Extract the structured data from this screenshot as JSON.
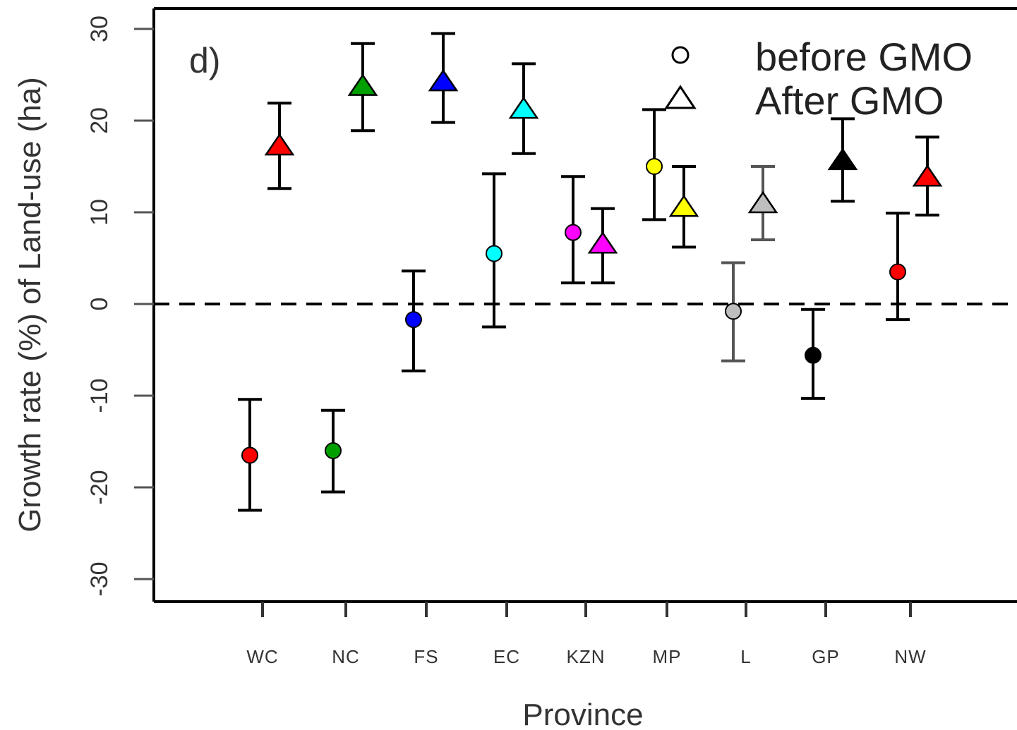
{
  "chart_data": {
    "type": "scatter",
    "panel_label": "d)",
    "xlabel": "Province",
    "ylabel": "Growth rate (%) of Land-use (ha)",
    "ylim": [
      -32,
      32
    ],
    "yticks": [
      "-30",
      "-20",
      "-10",
      "0",
      "10",
      "20",
      "30"
    ],
    "ytick_values": [
      -30,
      -20,
      -10,
      0,
      10,
      20,
      30
    ],
    "reference_line": 0,
    "categories": [
      "WC",
      "NC",
      "FS",
      "EC",
      "KZN",
      "MP",
      "L",
      "GP",
      "NW"
    ],
    "colors": [
      "#ff0000",
      "#00a000",
      "#0000ff",
      "#00ffff",
      "#ff00ff",
      "#ffff00",
      "#bebebe",
      "#000000",
      "#ff0000"
    ],
    "legend": {
      "position": "top-right",
      "entries": [
        {
          "label": "before GMO",
          "marker": "circle"
        },
        {
          "label": "After GMO",
          "marker": "triangle"
        }
      ]
    },
    "series": [
      {
        "name": "before GMO",
        "marker": "circle",
        "values": [
          -16.5,
          -16.0,
          -1.7,
          5.5,
          7.8,
          15.0,
          -0.8,
          -5.6,
          3.5
        ],
        "lower": [
          -22.5,
          -20.5,
          -7.3,
          -2.5,
          2.3,
          9.2,
          -6.2,
          -10.3,
          -1.7
        ],
        "upper": [
          -10.4,
          -11.6,
          3.6,
          14.2,
          13.9,
          21.2,
          4.5,
          -0.6,
          9.9
        ]
      },
      {
        "name": "After GMO",
        "marker": "triangle",
        "values": [
          17.3,
          23.8,
          24.3,
          21.3,
          6.6,
          10.6,
          11.0,
          15.7,
          13.9
        ],
        "lower": [
          12.6,
          18.9,
          19.8,
          16.4,
          2.3,
          6.2,
          7.0,
          11.2,
          9.7
        ],
        "upper": [
          21.9,
          28.4,
          29.5,
          26.2,
          10.4,
          15.0,
          15.0,
          20.2,
          18.2
        ]
      }
    ]
  }
}
